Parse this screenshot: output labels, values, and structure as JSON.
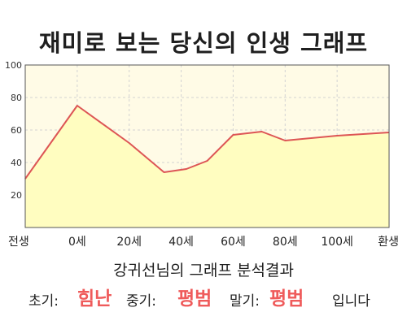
{
  "title": "재미로 보는 당신의 인생 그래프",
  "chart_data": {
    "type": "area",
    "x_categories": [
      "전생",
      "0세",
      "20세",
      "40세",
      "60세",
      "80세",
      "100세",
      "환생"
    ],
    "points": [
      {
        "pos": 0.0,
        "y": 30
      },
      {
        "pos": 1.0,
        "y": 75
      },
      {
        "pos": 2.0,
        "y": 52
      },
      {
        "pos": 2.67,
        "y": 34
      },
      {
        "pos": 3.1,
        "y": 36
      },
      {
        "pos": 3.5,
        "y": 41
      },
      {
        "pos": 4.0,
        "y": 57
      },
      {
        "pos": 4.55,
        "y": 59
      },
      {
        "pos": 5.0,
        "y": 53.5
      },
      {
        "pos": 6.0,
        "y": 56.5
      },
      {
        "pos": 7.0,
        "y": 58.5
      }
    ],
    "ylim": [
      0,
      100
    ],
    "y_ticks": [
      20,
      40,
      60,
      80,
      100
    ],
    "grid": true,
    "line_color": "#dd5555",
    "fill_color": "#fffdc0",
    "plot_background": "#fffbe6",
    "grid_color": "#d3d3d3"
  },
  "summary": {
    "heading": "강귀선님의 그래프 분석결과",
    "early_label": "초기:",
    "early_value": "힘난",
    "mid_label": "중기:",
    "mid_value": "평범",
    "late_label": "말기:",
    "late_value": "평범",
    "suffix": "입니다"
  }
}
